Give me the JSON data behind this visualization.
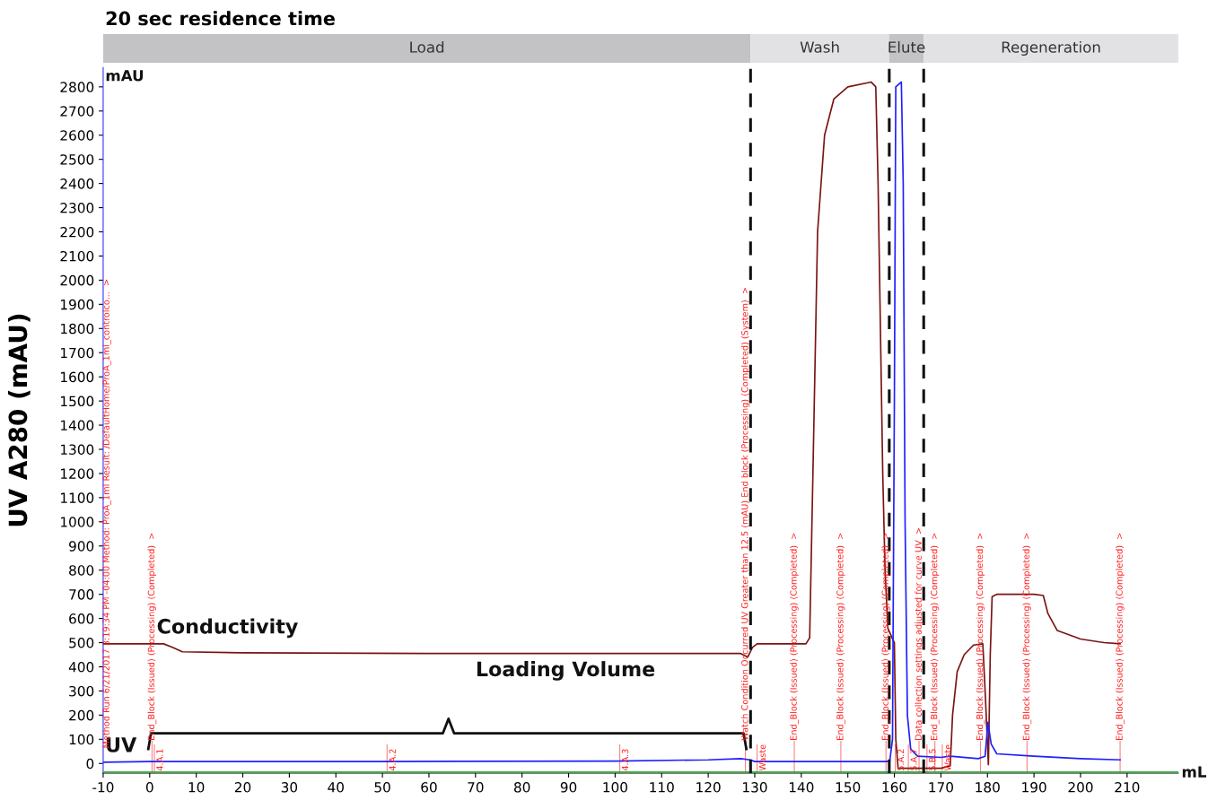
{
  "chart_data": {
    "type": "line",
    "title": "20 sec residence time",
    "ylabel": "UV A280 (mAU)",
    "series": [
      {
        "name": "Conductivity",
        "color": "#7a1414",
        "x": [
          -10,
          -3,
          3,
          5,
          7,
          20,
          60,
          100,
          127,
          128.5,
          129.5,
          130.5,
          141,
          141.8,
          142.5,
          143.5,
          145,
          147,
          150,
          155,
          156,
          156.5,
          157,
          157.5,
          158,
          158.6,
          159.5,
          160,
          160.3,
          160.8,
          170,
          172,
          172.5,
          173.5,
          175,
          177,
          179,
          179.5,
          180.2,
          180.6,
          181,
          182,
          190,
          192,
          193,
          195,
          200,
          205,
          208.5
        ],
        "values": [
          495,
          495,
          495,
          480,
          462,
          458,
          455,
          455,
          455,
          440,
          480,
          495,
          495,
          520,
          1200,
          2200,
          2600,
          2750,
          2800,
          2820,
          2800,
          2400,
          1800,
          1200,
          800,
          560,
          520,
          500,
          100,
          -20,
          -20,
          -10,
          200,
          380,
          450,
          490,
          495,
          300,
          -5,
          450,
          690,
          700,
          700,
          695,
          620,
          550,
          515,
          500,
          495
        ]
      },
      {
        "name": "UV",
        "color": "#1f1fff",
        "x": [
          -10,
          0,
          50,
          100,
          120,
          127,
          129,
          130,
          158,
          159,
          159.6,
          160,
          160.3,
          161.5,
          161.9,
          162.3,
          162.8,
          163.5,
          165,
          170,
          172,
          178,
          179.5,
          180.1,
          180.8,
          182,
          190,
          200,
          208.5
        ],
        "values": [
          5,
          8,
          8,
          10,
          15,
          20,
          15,
          8,
          8,
          10,
          100,
          1500,
          2800,
          2820,
          2400,
          1000,
          200,
          60,
          30,
          25,
          30,
          20,
          30,
          170,
          80,
          40,
          30,
          20,
          15
        ]
      },
      {
        "color": "#3cb043",
        "x": [
          -10,
          221
        ],
        "values": [
          -36,
          -36
        ]
      }
    ],
    "xlim": [
      -10,
      221
    ],
    "ylim": [
      -40,
      2880
    ],
    "xticks": [
      -10,
      0,
      10,
      20,
      30,
      40,
      50,
      60,
      70,
      80,
      90,
      100,
      110,
      120,
      130,
      140,
      150,
      160,
      170,
      180,
      190,
      200,
      210
    ],
    "yticks": [
      0,
      100,
      200,
      300,
      400,
      500,
      600,
      700,
      800,
      900,
      1000,
      1100,
      1200,
      1300,
      1400,
      1500,
      1600,
      1700,
      1800,
      1900,
      2000,
      2100,
      2200,
      2300,
      2400,
      2500,
      2600,
      2700,
      2800
    ],
    "ref_lines": [
      {
        "axis": "x",
        "value": 129.1,
        "color": "#111111",
        "line_style": "dashed"
      },
      {
        "axis": "x",
        "value": 158.9,
        "color": "#111111",
        "line_style": "dashed"
      },
      {
        "axis": "x",
        "value": 166.3,
        "color": "#111111",
        "line_style": "dashed"
      },
      {
        "axis": "x",
        "value": 0.5,
        "color": "#ff8080",
        "label": "End_Block (Issued) (Processing) (Completed)  >"
      },
      {
        "axis": "x",
        "value": 1,
        "color": "#ff8080",
        "label": "4.A.1"
      },
      {
        "axis": "x",
        "value": 51,
        "color": "#ff8080",
        "label": "4.A.2"
      },
      {
        "axis": "x",
        "value": 101,
        "color": "#ff8080",
        "label": "4.A.3"
      },
      {
        "axis": "x",
        "value": 128,
        "color": "#ff8080",
        "label": "Watch Condition Occurred UV Greater than 12.5 (mAU) End block (Processing) (Completed) (System)  >"
      },
      {
        "axis": "x",
        "value": 130.5,
        "color": "#ff8080",
        "label": "Waste"
      },
      {
        "axis": "x",
        "value": 138.5,
        "color": "#ff8080",
        "label": "End_Block (Issued) (Processing) (Completed)  >"
      },
      {
        "axis": "x",
        "value": 148.5,
        "color": "#ff8080",
        "label": "End_Block (Issued) (Processing) (Completed)  >"
      },
      {
        "axis": "x",
        "value": 158.2,
        "color": "#ff8080",
        "label": "End_Block (Issued) (Processing) (Completed)  >"
      },
      {
        "axis": "x",
        "value": 160.2,
        "color": "#ff8080",
        "label": "5.A.2"
      },
      {
        "axis": "x",
        "value": 163,
        "color": "#ff8080",
        "label": "5.A.7"
      },
      {
        "axis": "x",
        "value": 165.3,
        "color": "#ff8080",
        "label": "Data collection settings adjusted for curve UV  >"
      },
      {
        "axis": "x",
        "value": 167,
        "color": "#ff8080",
        "label": "5.B.5"
      },
      {
        "axis": "x",
        "value": 168.7,
        "color": "#ff8080",
        "label": "End_Block (Issued) (Processing) (Completed)  >"
      },
      {
        "axis": "x",
        "value": 170.3,
        "color": "#ff8080",
        "label": "Waste"
      },
      {
        "axis": "x",
        "value": 178.5,
        "color": "#ff8080",
        "label": "End_Block (Issued) (Processing) (Completed)  >"
      },
      {
        "axis": "x",
        "value": 188.5,
        "color": "#ff8080",
        "label": "End_Block (Issued) (Processing) (Completed)  >"
      },
      {
        "axis": "x",
        "value": 208.5,
        "color": "#ff8080",
        "label": "End_Block (Issued) (Processing) (Completed)  >"
      }
    ],
    "annotations": [
      "mAU",
      "mL",
      "Loading Volume",
      "Method Run 6/21/2017 3:19:34 PM -04:00 Method: ProA_1ml Result: /DefaultHome/ProA_1ml_controlco...  >",
      "Load",
      "Wash",
      "Elute",
      "Regeneration"
    ]
  }
}
